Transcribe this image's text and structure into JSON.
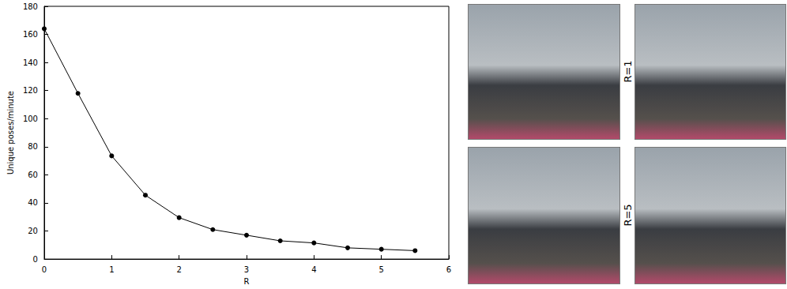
{
  "chart_data": {
    "type": "line",
    "x_label": "R",
    "y_label": "Unique poses/minute",
    "x": [
      0,
      0.5,
      1,
      1.5,
      2,
      2.5,
      3,
      3.5,
      4,
      4.5,
      5,
      5.5
    ],
    "values": [
      164,
      118,
      73.5,
      45.5,
      29.5,
      21,
      17,
      13,
      11.5,
      8,
      7,
      6
    ],
    "color": "#000000",
    "marker": "circle",
    "line_style": "solid",
    "xlim": [
      0,
      6
    ],
    "xticks": [
      0,
      1,
      2,
      3,
      4,
      5,
      6
    ],
    "ylim": [
      0,
      180
    ],
    "yticks": [
      0,
      20,
      40,
      60,
      80,
      100,
      120,
      140,
      160,
      180
    ],
    "grid": false
  },
  "image_panels": {
    "row_labels": [
      "R=1",
      "R=5"
    ]
  }
}
